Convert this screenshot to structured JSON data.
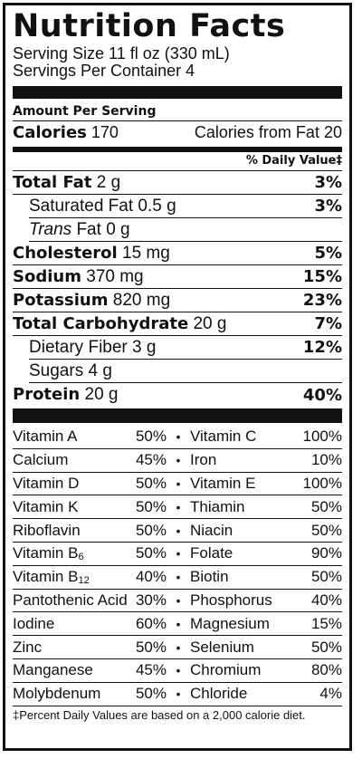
{
  "title": "Nutrition Facts",
  "serving_size": "Serving Size 11 fl oz (330 mL)",
  "servings_per_container": "Servings Per Container 4",
  "amount_per_serving": "Amount Per Serving",
  "calories": {
    "label": "Calories",
    "value": "170",
    "fat_label": "Calories from Fat",
    "fat_value": "20"
  },
  "daily_value_header": "% Daily Value‡",
  "nutrients": {
    "total_fat": {
      "name": "Total Fat",
      "amount": "2 g",
      "pct": "3%"
    },
    "saturated_fat": {
      "name": "Saturated Fat",
      "amount": "0.5 g",
      "pct": "3%"
    },
    "trans_fat": {
      "name_italic": "Trans",
      "name": "Fat",
      "amount": "0 g"
    },
    "cholesterol": {
      "name": "Cholesterol",
      "amount": "15 mg",
      "pct": "5%"
    },
    "sodium": {
      "name": "Sodium",
      "amount": "370 mg",
      "pct": "15%"
    },
    "potassium": {
      "name": "Potassium",
      "amount": "820 mg",
      "pct": "23%"
    },
    "total_carb": {
      "name": "Total Carbohydrate",
      "amount": "20 g",
      "pct": "7%"
    },
    "fiber": {
      "name": "Dietary Fiber",
      "amount": "3 g",
      "pct": "12%"
    },
    "sugars": {
      "name": "Sugars",
      "amount": "4 g"
    },
    "protein": {
      "name": "Protein",
      "amount": "20 g",
      "pct": "40%"
    }
  },
  "vitamins": [
    {
      "l": "Vitamin A",
      "lp": "50%",
      "r": "Vitamin C",
      "rp": "100%"
    },
    {
      "l": "Calcium",
      "lp": "45%",
      "r": "Iron",
      "rp": "10%"
    },
    {
      "l": "Vitamin D",
      "lp": "50%",
      "r": "Vitamin E",
      "rp": "100%"
    },
    {
      "l": "Vitamin K",
      "lp": "50%",
      "r": "Thiamin",
      "rp": "50%"
    },
    {
      "l": "Riboflavin",
      "lp": "50%",
      "r": "Niacin",
      "rp": "50%"
    },
    {
      "l": "Vitamin B",
      "lsub": "6",
      "lp": "50%",
      "r": "Folate",
      "rp": "90%"
    },
    {
      "l": "Vitamin B",
      "lsub": "12",
      "lp": "40%",
      "r": "Biotin",
      "rp": "50%"
    },
    {
      "l": "Pantothenic Acid",
      "lp": "30%",
      "r": "Phosphorus",
      "rp": "40%"
    },
    {
      "l": "Iodine",
      "lp": "60%",
      "r": "Magnesium",
      "rp": "15%"
    },
    {
      "l": "Zinc",
      "lp": "50%",
      "r": "Selenium",
      "rp": "50%"
    },
    {
      "l": "Manganese",
      "lp": "45%",
      "r": "Chromium",
      "rp": "80%"
    },
    {
      "l": "Molybdenum",
      "lp": "50%",
      "r": "Chloride",
      "rp": "4%"
    }
  ],
  "bullet": "•",
  "footnote": "‡Percent Daily Values are based on a 2,000 calorie diet."
}
